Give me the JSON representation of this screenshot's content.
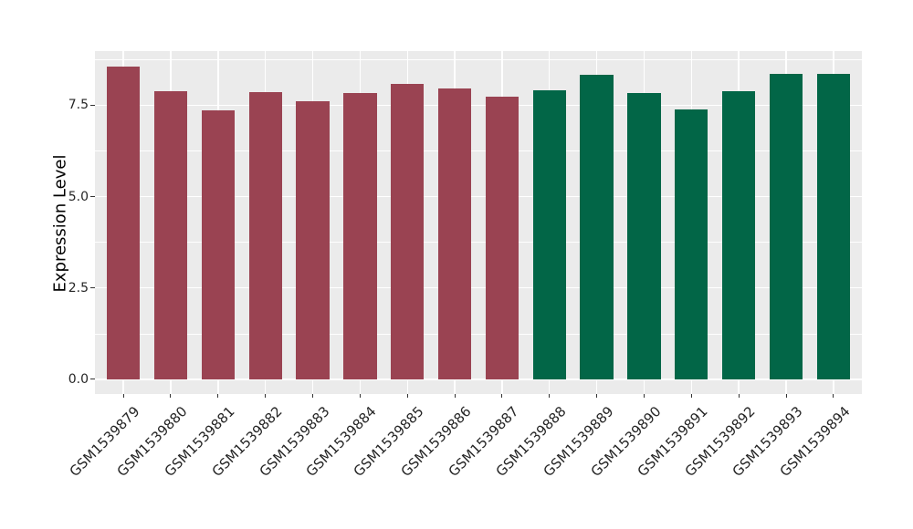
{
  "figure": {
    "background": "#FFFFFF"
  },
  "chart_data": {
    "type": "bar",
    "title": "",
    "xlabel": "",
    "ylabel": "Expression Level",
    "categories": [
      "GSM1539879",
      "GSM1539880",
      "GSM1539881",
      "GSM1539882",
      "GSM1539883",
      "GSM1539884",
      "GSM1539885",
      "GSM1539886",
      "GSM1539887",
      "GSM1539888",
      "GSM1539889",
      "GSM1539890",
      "GSM1539891",
      "GSM1539892",
      "GSM1539893",
      "GSM1539894"
    ],
    "values": [
      8.55,
      7.88,
      7.37,
      7.85,
      7.6,
      7.83,
      8.08,
      7.95,
      7.73,
      7.9,
      8.33,
      7.83,
      7.38,
      7.88,
      8.35,
      8.35
    ],
    "groups": [
      "group1",
      "group1",
      "group1",
      "group1",
      "group1",
      "group1",
      "group1",
      "group1",
      "group1",
      "group2",
      "group2",
      "group2",
      "group2",
      "group2",
      "group2",
      "group2"
    ],
    "group_colors": {
      "group1": "#9A4352",
      "group2": "#026647"
    },
    "y_ticks": [
      {
        "value": 0.0,
        "label": "0.0"
      },
      {
        "value": 2.5,
        "label": "2.5"
      },
      {
        "value": 5.0,
        "label": "5.0"
      },
      {
        "value": 7.5,
        "label": "7.5"
      }
    ],
    "y_minor_ticks": [
      1.25,
      3.75,
      6.25,
      8.75
    ],
    "ylim": [
      -0.4,
      8.98
    ],
    "bar_width_fraction": 0.7,
    "panel_background": "#EBEBEB",
    "gridline_color": "#FFFFFF",
    "x_tick_rotation_deg": -45,
    "legend_position": "none",
    "grid": "on"
  }
}
